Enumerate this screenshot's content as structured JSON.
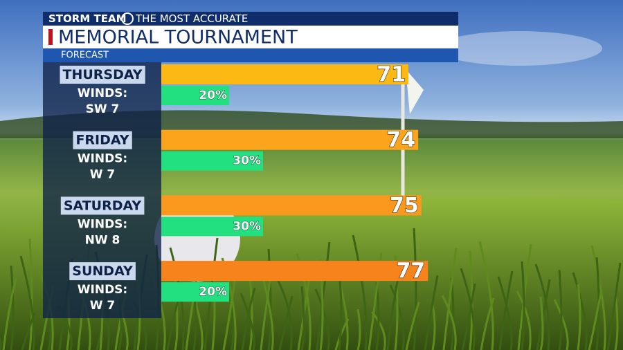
{
  "chart_data": {
    "type": "bar",
    "brand": "STORM TEAM",
    "tagline": "THE MOST ACCURATE",
    "title": "MEMORIAL TOURNAMENT",
    "subtitle": "FORECAST",
    "categories": [
      "THURSDAY",
      "FRIDAY",
      "SATURDAY",
      "SUNDAY"
    ],
    "winds_label": "WINDS:",
    "winds": [
      "SW 7",
      "W 7",
      "NW 8",
      "W 7"
    ],
    "temperatures": {
      "values": [
        71,
        74,
        75,
        77
      ],
      "colors": [
        "#fdb913",
        "#fca41b",
        "#fb991f",
        "#f7831d"
      ]
    },
    "precipitation": {
      "values": [
        20,
        30,
        30,
        20
      ],
      "value_labels": [
        "20%",
        "30%",
        "30%",
        "20%"
      ],
      "color": "#22e07f"
    }
  }
}
